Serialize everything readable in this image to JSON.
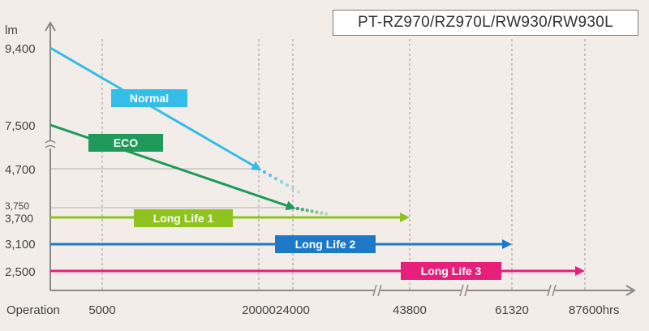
{
  "model_label": "PT-RZ970/RZ970L/RW930/RW930L",
  "colors": {
    "background": "#f2ede9",
    "axis": "#8a8a8a",
    "grid": "#9a9a9a",
    "text": "#444444"
  },
  "chart_data": {
    "type": "line",
    "title": "",
    "ylabel": "lm",
    "xlabel": "Operation",
    "x_unit_suffix": "hrs",
    "x_ticks": [
      5000,
      20000,
      24000,
      43800,
      61320,
      87600
    ],
    "x_tick_labels": [
      "5000",
      "20000",
      "24000",
      "43800",
      "61320",
      "87600hrs"
    ],
    "y_ticks": [
      9400,
      7500,
      4700,
      3750,
      3700,
      3100,
      2500
    ],
    "y_tick_labels": [
      "9,400",
      "7,500",
      "4,700",
      "3,750",
      "3,700",
      "3,100",
      "2,500"
    ],
    "y_axis_break_after": 7500,
    "x_axis_breaks_after": [
      24000,
      43800,
      61320
    ],
    "grid": "vertical dashed at x ticks",
    "series": [
      {
        "name": "Normal",
        "color": "#33bde8",
        "x": [
          0,
          20000
        ],
        "y": [
          9400,
          4700
        ],
        "dotted_to_x": 24000
      },
      {
        "name": "ECO",
        "color": "#1f9a5a",
        "x": [
          0,
          24000
        ],
        "y": [
          7500,
          3750
        ],
        "dotted_to_x": 28000
      },
      {
        "name": "Long Life 1",
        "color": "#8fc31f",
        "x": [
          0,
          43800
        ],
        "y": [
          3700,
          3700
        ]
      },
      {
        "name": "Long Life 2",
        "color": "#1e78c8",
        "x": [
          0,
          61320
        ],
        "y": [
          3100,
          3100
        ]
      },
      {
        "name": "Long Life 3",
        "color": "#e6207a",
        "x": [
          0,
          87600
        ],
        "y": [
          2500,
          2500
        ]
      }
    ]
  }
}
